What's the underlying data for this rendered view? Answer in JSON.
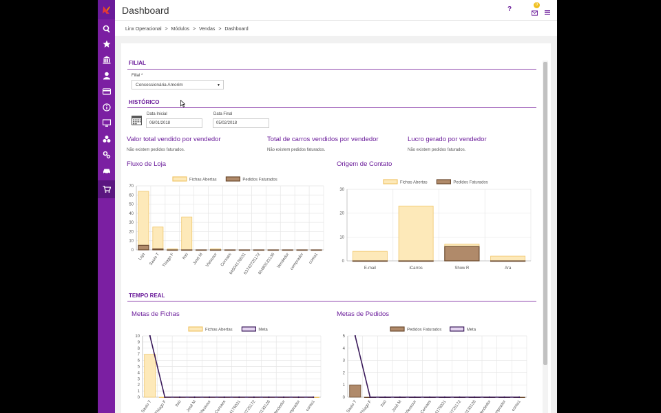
{
  "header": {
    "title": "Dashboard",
    "help": "?",
    "mail_badge": "0"
  },
  "breadcrumb": [
    "Linx Operacional",
    ">",
    "Módulos",
    ">",
    "Vendas",
    ">",
    "Dashboard"
  ],
  "sidebar": {
    "icons": [
      "logo-icon",
      "search-icon",
      "star-icon",
      "bank-icon",
      "user-icon",
      "card-icon",
      "info-icon",
      "monitor-icon",
      "layers-icon",
      "settings-icon",
      "car-icon",
      "cart-icon"
    ]
  },
  "filial": {
    "section_title": "FILIAL",
    "label": "Filial *",
    "selected": "Concessionária Amorim"
  },
  "historico": {
    "section_title": "HISTÓRICO",
    "start_label": "Data Inicial",
    "start_value": "06/01/2018",
    "end_label": "Data Final",
    "end_value": "05/02/2018"
  },
  "kpis": [
    {
      "title": "Valor total vendido por vendedor",
      "note": "Não existem pedidos faturados."
    },
    {
      "title": "Total de carros vendidos por vendedor",
      "note": "Não existem pedidos faturados."
    },
    {
      "title": "Lucro gerado por vendedor",
      "note": "Não existem pedidos faturados."
    }
  ],
  "tempo_real": {
    "section_title": "TEMPO REAL"
  },
  "colors": {
    "accent": "#6a1b9a",
    "sidebar": "#7b1fa2",
    "fichas_fill": "#fde9b9",
    "fichas_stroke": "#f0c66a",
    "pedidos_fill": "#b08a6a",
    "meta_line": "#3a1a5a"
  },
  "chart_data": [
    {
      "id": "fluxo",
      "type": "bar",
      "title": "Fluxo de Loja",
      "categories": [
        "Loja",
        "Saulo T",
        "Thiago F",
        "Itaú",
        "José M",
        "Vlessour",
        "Corsaes",
        "64504176031",
        "63742725172",
        "60480133136",
        "Vendedor",
        "comprador",
        "conta1"
      ],
      "series": [
        {
          "name": "Fichas Abertas",
          "values": [
            64,
            25,
            1,
            36,
            0,
            1,
            0,
            0,
            0,
            0,
            0,
            0,
            0
          ]
        },
        {
          "name": "Pedidos Faturados",
          "values": [
            5,
            1,
            0,
            0,
            0,
            0,
            0,
            0,
            0,
            0,
            0,
            0,
            0
          ]
        }
      ],
      "yticks": [
        0,
        10,
        20,
        30,
        40,
        50,
        60,
        70
      ],
      "ylim": [
        0,
        70
      ],
      "legend": "top"
    },
    {
      "id": "origem",
      "type": "bar",
      "title": "Origem de Contato",
      "categories": [
        "E-mail",
        "iCarros",
        "Show R",
        "Ara"
      ],
      "series": [
        {
          "name": "Fichas Abertas",
          "values": [
            4,
            23,
            7,
            2
          ]
        },
        {
          "name": "Pedidos Faturados",
          "values": [
            0,
            0,
            6,
            0
          ]
        }
      ],
      "yticks": [
        0,
        10,
        20,
        30
      ],
      "ylim": [
        0,
        30
      ],
      "legend": "top"
    },
    {
      "id": "metas_fichas",
      "type": "bar",
      "title": "Metas de Fichas",
      "categories": [
        "Saulo T",
        "Thiago F",
        "Itaú",
        "José M",
        "Vlessour",
        "Corsaes",
        "64504176031",
        "63742725172",
        "60480133136",
        "Vendedor",
        "comprador",
        "conta1"
      ],
      "series": [
        {
          "name": "Fichas Abertas",
          "values": [
            7,
            0,
            0,
            0,
            0,
            0,
            0,
            0,
            0,
            0,
            0,
            0
          ]
        },
        {
          "name": "Meta",
          "type": "line",
          "values": [
            10,
            0,
            0,
            0,
            0,
            0,
            0,
            0,
            0,
            0,
            0,
            0
          ]
        }
      ],
      "yticks": [
        0,
        1,
        2,
        3,
        4,
        5,
        6,
        7,
        8,
        9,
        10
      ],
      "ylim": [
        0,
        10
      ],
      "legend": "top"
    },
    {
      "id": "metas_pedidos",
      "type": "bar",
      "title": "Metas de Pedidos",
      "categories": [
        "Saulo T",
        "Thiago F",
        "Itaú",
        "José M",
        "Vlessour",
        "Corsaes",
        "64504176031",
        "63742725172",
        "60480133136",
        "Vendedor",
        "comprador",
        "conta1"
      ],
      "series": [
        {
          "name": "Pedidos Faturados",
          "values": [
            1,
            0,
            0,
            0,
            0,
            0,
            0,
            0,
            0,
            0,
            0,
            0
          ]
        },
        {
          "name": "Meta",
          "type": "line",
          "values": [
            5,
            0,
            0,
            0,
            0,
            0,
            0,
            0,
            0,
            0,
            0,
            0
          ]
        }
      ],
      "yticks": [
        0,
        1,
        2,
        3,
        4,
        5
      ],
      "ylim": [
        0,
        5
      ],
      "legend": "top"
    }
  ]
}
